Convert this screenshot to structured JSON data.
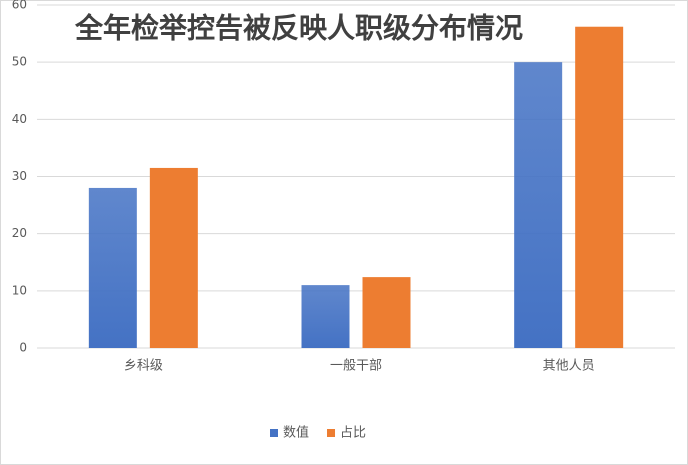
{
  "chart_data": {
    "type": "bar",
    "title": "全年检举控告被反映人职级分布情况",
    "categories": [
      "乡科级",
      "一般干部",
      "其他人员"
    ],
    "series": [
      {
        "name": "数值",
        "color": "#4472c4",
        "values": [
          28,
          11,
          50
        ]
      },
      {
        "name": "占比",
        "color": "#ed7d31",
        "values": [
          31.5,
          12.4,
          56.2
        ]
      }
    ],
    "ylim": [
      0,
      60
    ],
    "yticks": [
      0,
      10,
      20,
      30,
      40,
      50,
      60
    ],
    "grid": true,
    "legend": "bottom"
  }
}
